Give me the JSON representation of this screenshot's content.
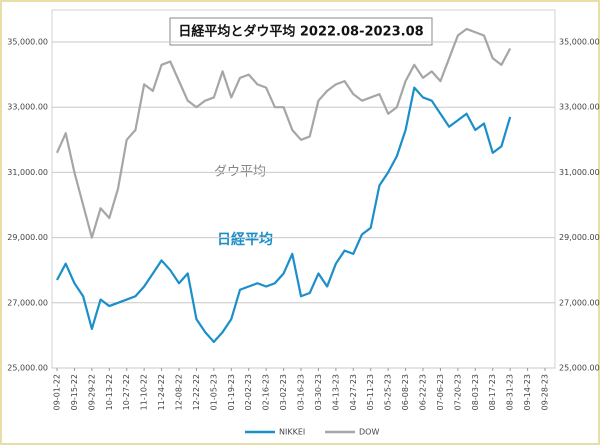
{
  "chart_data": {
    "type": "line",
    "title": "日経平均とダウ平均 2022.08-2023.08",
    "annotations": [
      "ダウ平均",
      "日経平均"
    ],
    "x": [
      "09-01-22",
      "09-08-22",
      "09-15-22",
      "09-22-22",
      "09-29-22",
      "10-06-22",
      "10-13-22",
      "10-20-22",
      "10-27-22",
      "11-03-22",
      "11-10-22",
      "11-17-22",
      "11-24-22",
      "12-01-22",
      "12-08-22",
      "12-15-22",
      "12-22-22",
      "12-29-22",
      "01-05-23",
      "01-12-23",
      "01-19-23",
      "01-26-23",
      "02-02-23",
      "02-09-23",
      "02-16-23",
      "02-23-23",
      "03-02-23",
      "03-09-23",
      "03-16-23",
      "03-23-23",
      "03-30-23",
      "04-06-23",
      "04-13-23",
      "04-20-23",
      "04-27-23",
      "05-04-23",
      "05-11-23",
      "05-18-23",
      "05-25-23",
      "06-01-23",
      "06-08-23",
      "06-15-23",
      "06-22-23",
      "06-29-23",
      "07-06-23",
      "07-13-23",
      "07-20-23",
      "07-27-23",
      "08-03-23",
      "08-10-23",
      "08-17-23",
      "08-24-23",
      "08-31-23"
    ],
    "series": [
      {
        "name": "NIKKEI",
        "color": "#1a8fc9",
        "values": [
          27700,
          28200,
          27600,
          27200,
          26200,
          27100,
          26900,
          27000,
          27100,
          27200,
          27500,
          27900,
          28300,
          28000,
          27600,
          27900,
          26500,
          26100,
          25800,
          26100,
          26500,
          27400,
          27500,
          27600,
          27500,
          27600,
          27900,
          28500,
          27200,
          27300,
          27900,
          27500,
          28200,
          28600,
          28500,
          29100,
          29300,
          30600,
          31000,
          31500,
          32300,
          33600,
          33300,
          33200,
          32800,
          32400,
          32600,
          32800,
          32300,
          32500,
          31600,
          31800,
          32700
        ]
      },
      {
        "name": "DOW",
        "color": "#a6a6a6",
        "axis": "y2",
        "values": [
          31600,
          32200,
          31000,
          30000,
          29000,
          29900,
          29600,
          30500,
          32000,
          32300,
          33700,
          33500,
          34300,
          34400,
          33800,
          33200,
          33000,
          33200,
          33300,
          34100,
          33300,
          33900,
          34000,
          33700,
          33600,
          33000,
          33000,
          32300,
          32000,
          32100,
          33200,
          33500,
          33700,
          33800,
          33400,
          33200,
          33300,
          33400,
          32800,
          33000,
          33800,
          34300,
          33900,
          34100,
          33800,
          34500,
          35200,
          35400,
          35300,
          35200,
          34500,
          34300,
          34800
        ]
      }
    ],
    "xlim": [
      "09-01-22",
      "09-28-23"
    ],
    "xticks": [
      "09-01-22",
      "09-15-22",
      "09-29-22",
      "10-13-22",
      "10-27-22",
      "11-10-22",
      "11-24-22",
      "12-08-22",
      "12-22-22",
      "01-05-23",
      "01-19-23",
      "02-02-23",
      "02-16-23",
      "03-02-23",
      "03-16-23",
      "03-30-23",
      "04-13-23",
      "04-27-23",
      "05-11-23",
      "05-25-23",
      "06-08-23",
      "06-22-23",
      "07-06-23",
      "07-20-23",
      "08-03-23",
      "08-17-23",
      "08-31-23",
      "09-14-23",
      "09-28-23"
    ],
    "ylim": [
      25000,
      35000
    ],
    "yticks": [
      {
        "value": 25000,
        "label": "25,000.00"
      },
      {
        "value": 27000,
        "label": "27,000.00"
      },
      {
        "value": 29000,
        "label": "29,000.00"
      },
      {
        "value": 31000,
        "label": "31,000.00"
      },
      {
        "value": 33000,
        "label": "33,000.00"
      },
      {
        "value": 35000,
        "label": "35,000.00"
      }
    ],
    "y2lim": [
      25000,
      35000
    ],
    "y2ticks": [
      {
        "value": 25000,
        "label": "25,000.00"
      },
      {
        "value": 27000,
        "label": "27,000.00"
      },
      {
        "value": 29000,
        "label": "29,000.00"
      },
      {
        "value": 31000,
        "label": "31,000.00"
      },
      {
        "value": 33000,
        "label": "33,000.00"
      },
      {
        "value": 35000,
        "label": "35,000.00"
      }
    ],
    "grid": true,
    "legend": "bottom"
  }
}
